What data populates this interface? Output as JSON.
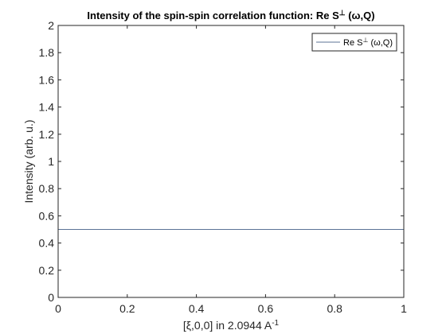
{
  "chart_data": {
    "type": "line",
    "title": "Intensity of the spin-spin correlation function: Re S⊥ (ω,Q)",
    "title_parts": {
      "main": "Intensity of the spin-spin correlation function: Re S",
      "sup": "⊥",
      "tail": " (ω,Q)"
    },
    "xlabel": "[ξ,0,0] in 2.0944 A",
    "xlabel_sup": "-1",
    "ylabel": "Intensity (arb. u.)",
    "xlim": [
      0,
      1
    ],
    "ylim": [
      0,
      2
    ],
    "xticks": [
      0,
      0.2,
      0.4,
      0.6,
      0.8,
      1
    ],
    "xtick_labels": [
      "0",
      "0.2",
      "0.4",
      "0.6",
      "0.8",
      "1"
    ],
    "yticks": [
      0,
      0.2,
      0.4,
      0.6,
      0.8,
      1,
      1.2,
      1.4,
      1.6,
      1.8,
      2
    ],
    "ytick_labels": [
      "0",
      "0.2",
      "0.4",
      "0.6",
      "0.8",
      "1",
      "1.2",
      "1.4",
      "1.6",
      "1.8",
      "2"
    ],
    "grid": false,
    "legend_position": "top-right",
    "series": [
      {
        "name": "Re S⊥ (ω,Q)",
        "legend_parts": {
          "main": "Re S",
          "sup": "⊥",
          "tail": " (ω,Q)"
        },
        "color": "#5b7396",
        "x": [
          0,
          1
        ],
        "y": [
          0.5,
          0.5
        ]
      }
    ]
  }
}
